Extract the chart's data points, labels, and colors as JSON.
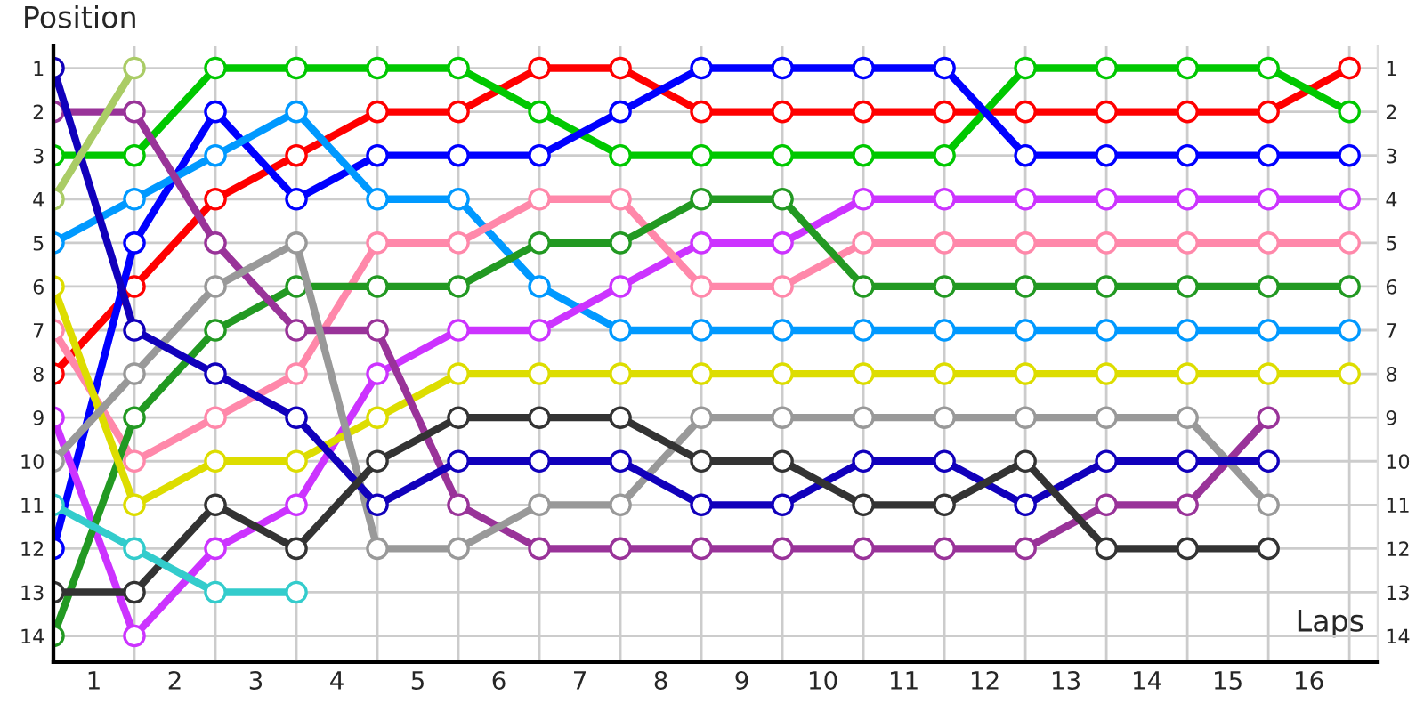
{
  "chart_data": {
    "type": "line",
    "xlabel": "Laps",
    "ylabel": "Position",
    "x": [
      0,
      1,
      2,
      3,
      4,
      5,
      6,
      7,
      8,
      9,
      10,
      11,
      12,
      13,
      14,
      15,
      16
    ],
    "xlim": [
      0,
      16.35
    ],
    "ylim": [
      14.6,
      0.5
    ],
    "y2lim": [
      14.6,
      0.5
    ],
    "xticks": [
      {
        "value": 0,
        "label": null
      },
      {
        "value": 1,
        "label": null
      },
      {
        "value": 2,
        "label": null
      },
      {
        "value": 3,
        "label": null
      },
      {
        "value": 4,
        "label": null
      },
      {
        "value": 5,
        "label": null
      },
      {
        "value": 6,
        "label": null
      },
      {
        "value": 7,
        "label": null
      },
      {
        "value": 8,
        "label": null
      },
      {
        "value": 9,
        "label": null
      },
      {
        "value": 10,
        "label": null
      },
      {
        "value": 11,
        "label": null
      },
      {
        "value": 12,
        "label": null
      },
      {
        "value": 13,
        "label": null
      },
      {
        "value": 14,
        "label": null
      },
      {
        "value": 15,
        "label": null
      },
      {
        "value": 16,
        "label": null
      },
      {
        "value": 0.5,
        "label": "1"
      },
      {
        "value": 1.5,
        "label": "2"
      },
      {
        "value": 2.5,
        "label": "3"
      },
      {
        "value": 3.5,
        "label": "4"
      },
      {
        "value": 4.5,
        "label": "5"
      },
      {
        "value": 5.5,
        "label": "6"
      },
      {
        "value": 6.5,
        "label": "7"
      },
      {
        "value": 7.5,
        "label": "8"
      },
      {
        "value": 8.5,
        "label": "9"
      },
      {
        "value": 9.5,
        "label": "10"
      },
      {
        "value": 10.5,
        "label": "11"
      },
      {
        "value": 11.5,
        "label": "12"
      },
      {
        "value": 12.5,
        "label": "13"
      },
      {
        "value": 13.5,
        "label": "14"
      },
      {
        "value": 14.5,
        "label": "15"
      },
      {
        "value": 15.5,
        "label": "16"
      }
    ],
    "yticks": [
      1,
      2,
      3,
      4,
      5,
      6,
      7,
      8,
      9,
      10,
      11,
      12,
      13,
      14
    ],
    "y2ticks": [
      1,
      2,
      3,
      4,
      5,
      6,
      7,
      8,
      9,
      10,
      11,
      12,
      13,
      14
    ],
    "grid": true,
    "legend": false,
    "marker": "circle",
    "line_style": "solid",
    "series": [
      {
        "color": "#ff0000",
        "values": [
          8,
          6,
          4,
          3,
          2,
          2,
          1,
          1,
          2,
          2,
          2,
          2,
          2,
          2,
          2,
          2,
          1
        ]
      },
      {
        "color": "#00c800",
        "values": [
          3,
          3,
          1,
          1,
          1,
          1,
          2,
          3,
          3,
          3,
          3,
          3,
          1,
          1,
          1,
          1,
          2
        ]
      },
      {
        "color": "#0000ff",
        "values": [
          12,
          5,
          2,
          4,
          3,
          3,
          3,
          2,
          1,
          1,
          1,
          1,
          3,
          3,
          3,
          3,
          3
        ]
      },
      {
        "color": "#0099ff",
        "values": [
          5,
          4,
          3,
          2,
          4,
          4,
          6,
          7,
          7,
          7,
          7,
          7,
          7,
          7,
          7,
          7,
          7
        ]
      },
      {
        "color": "#cc33ff",
        "values": [
          9,
          14,
          12,
          11,
          8,
          7,
          7,
          6,
          5,
          5,
          4,
          4,
          4,
          4,
          4,
          4,
          4
        ]
      },
      {
        "color": "#ff88aa",
        "values": [
          7,
          10,
          9,
          8,
          5,
          5,
          4,
          4,
          6,
          6,
          5,
          5,
          5,
          5,
          5,
          5,
          5
        ]
      },
      {
        "color": "#229922",
        "values": [
          14,
          9,
          7,
          6,
          6,
          6,
          5,
          5,
          4,
          4,
          6,
          6,
          6,
          6,
          6,
          6,
          6
        ]
      },
      {
        "color": "#dddd00",
        "values": [
          6,
          11,
          10,
          10,
          9,
          8,
          8,
          8,
          8,
          8,
          8,
          8,
          8,
          8,
          8,
          8,
          8
        ]
      },
      {
        "color": "#993399",
        "values": [
          2,
          2,
          5,
          7,
          7,
          11,
          12,
          12,
          12,
          12,
          12,
          12,
          12,
          11,
          11,
          9,
          null
        ]
      },
      {
        "color": "#999999",
        "values": [
          10,
          8,
          6,
          5,
          12,
          12,
          11,
          11,
          9,
          9,
          9,
          9,
          9,
          9,
          9,
          11,
          null
        ]
      },
      {
        "color": "#1100bb",
        "values": [
          1,
          7,
          8,
          9,
          11,
          10,
          10,
          10,
          11,
          11,
          10,
          10,
          11,
          10,
          10,
          10,
          null
        ]
      },
      {
        "color": "#333333",
        "values": [
          13,
          13,
          11,
          12,
          10,
          9,
          9,
          9,
          10,
          10,
          11,
          11,
          10,
          12,
          12,
          12,
          null
        ]
      },
      {
        "color": "#33cccc",
        "values": [
          11,
          12,
          13,
          13,
          null,
          null,
          null,
          null,
          null,
          null,
          null,
          null,
          null,
          null,
          null,
          null,
          null
        ]
      },
      {
        "color": "#aacc66",
        "values": [
          4,
          1,
          null,
          null,
          null,
          null,
          null,
          null,
          null,
          null,
          null,
          null,
          null,
          null,
          null,
          null,
          null
        ]
      }
    ]
  }
}
